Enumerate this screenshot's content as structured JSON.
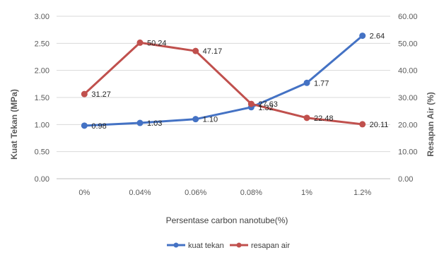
{
  "chart_data": {
    "type": "line",
    "categories": [
      "0%",
      "0.04%",
      "0.06%",
      "0.08%",
      "1%",
      "1.2%"
    ],
    "xlabel": "Persentase carbon nanotube(%)",
    "ylabel": "Kuat Tekan (MPa)",
    "y2label": "Resapan Air (%)",
    "ylim": [
      0,
      3
    ],
    "y2lim": [
      0,
      60
    ],
    "yticks": [
      "0.00",
      "0.50",
      "1.00",
      "1.50",
      "2.00",
      "2.50",
      "3.00"
    ],
    "y2ticks": [
      "0.00",
      "10.00",
      "20.00",
      "30.00",
      "40.00",
      "50.00",
      "60.00"
    ],
    "grid": true,
    "legend_position": "bottom",
    "series": [
      {
        "name": "kuat tekan",
        "axis": "left",
        "color": "#4472C4",
        "values": [
          0.98,
          1.03,
          1.1,
          1.32,
          1.77,
          2.64
        ],
        "labels": [
          "0.98",
          "1.03",
          "1.10",
          "1.32",
          "1.77",
          "2.64"
        ]
      },
      {
        "name": "resapan air",
        "axis": "right",
        "color": "#C0504D",
        "values": [
          31.27,
          50.24,
          47.17,
          27.63,
          22.48,
          20.11
        ],
        "labels": [
          "31.27",
          "50.24",
          "47.17",
          "27.63",
          "22.48",
          "20.11"
        ]
      }
    ]
  }
}
